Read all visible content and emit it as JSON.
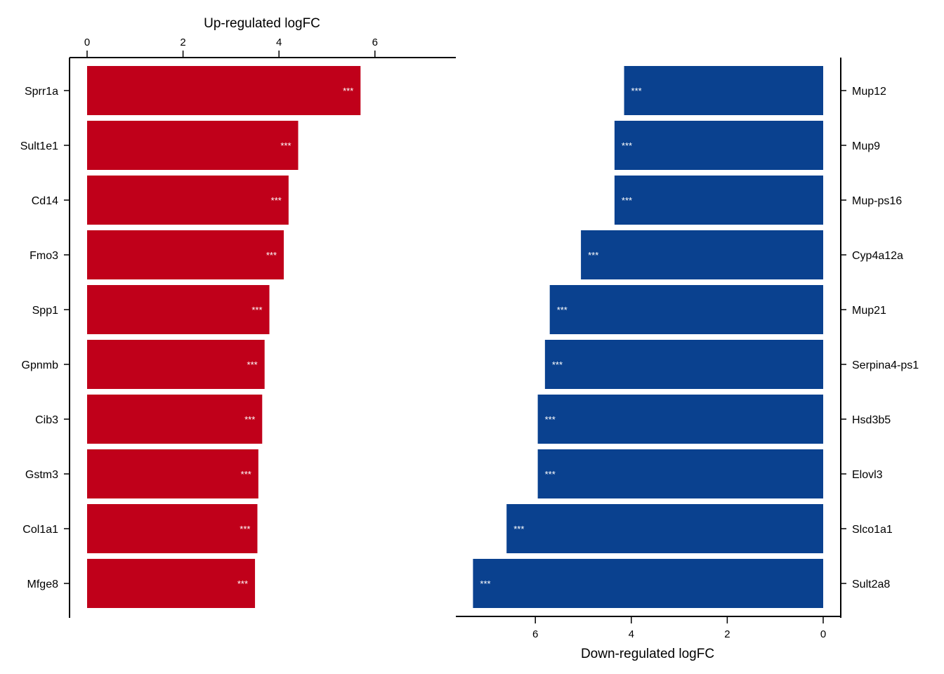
{
  "chart_data": [
    {
      "type": "bar",
      "orientation": "horizontal",
      "direction": "left-to-right",
      "xlabel": "Up-regulated logFC",
      "xaxis_position": "top",
      "category_axis_position": "left",
      "xlim": [
        0,
        7.5
      ],
      "xticks": [
        0,
        2,
        4,
        6
      ],
      "color": "#c0001a",
      "categories": [
        "Sprr1a",
        "Sult1e1",
        "Cd14",
        "Fmo3",
        "Spp1",
        "Gpnmb",
        "Cib3",
        "Gstm3",
        "Col1a1",
        "Mfge8"
      ],
      "values": [
        5.7,
        4.4,
        4.2,
        4.1,
        3.8,
        3.7,
        3.65,
        3.57,
        3.55,
        3.5
      ],
      "annotations": [
        "***",
        "***",
        "***",
        "***",
        "***",
        "***",
        "***",
        "***",
        "***",
        "***"
      ]
    },
    {
      "type": "bar",
      "orientation": "horizontal",
      "direction": "right-to-left",
      "xlabel": "Down-regulated logFC",
      "xaxis_position": "bottom",
      "category_axis_position": "right",
      "xlim": [
        0,
        7.7
      ],
      "xticks": [
        6,
        4,
        2,
        0
      ],
      "color": "#0a418f",
      "categories": [
        "Mup12",
        "Mup9",
        "Mup-ps16",
        "Cyp4a12a",
        "Mup21",
        "Serpina4-ps1",
        "Hsd3b5",
        "Elovl3",
        "Slco1a1",
        "Sult2a8"
      ],
      "values": [
        4.15,
        4.35,
        4.35,
        5.05,
        5.7,
        5.8,
        5.95,
        5.95,
        6.6,
        7.3
      ],
      "annotations": [
        "***",
        "***",
        "***",
        "***",
        "***",
        "***",
        "***",
        "***",
        "***",
        "***"
      ]
    }
  ]
}
